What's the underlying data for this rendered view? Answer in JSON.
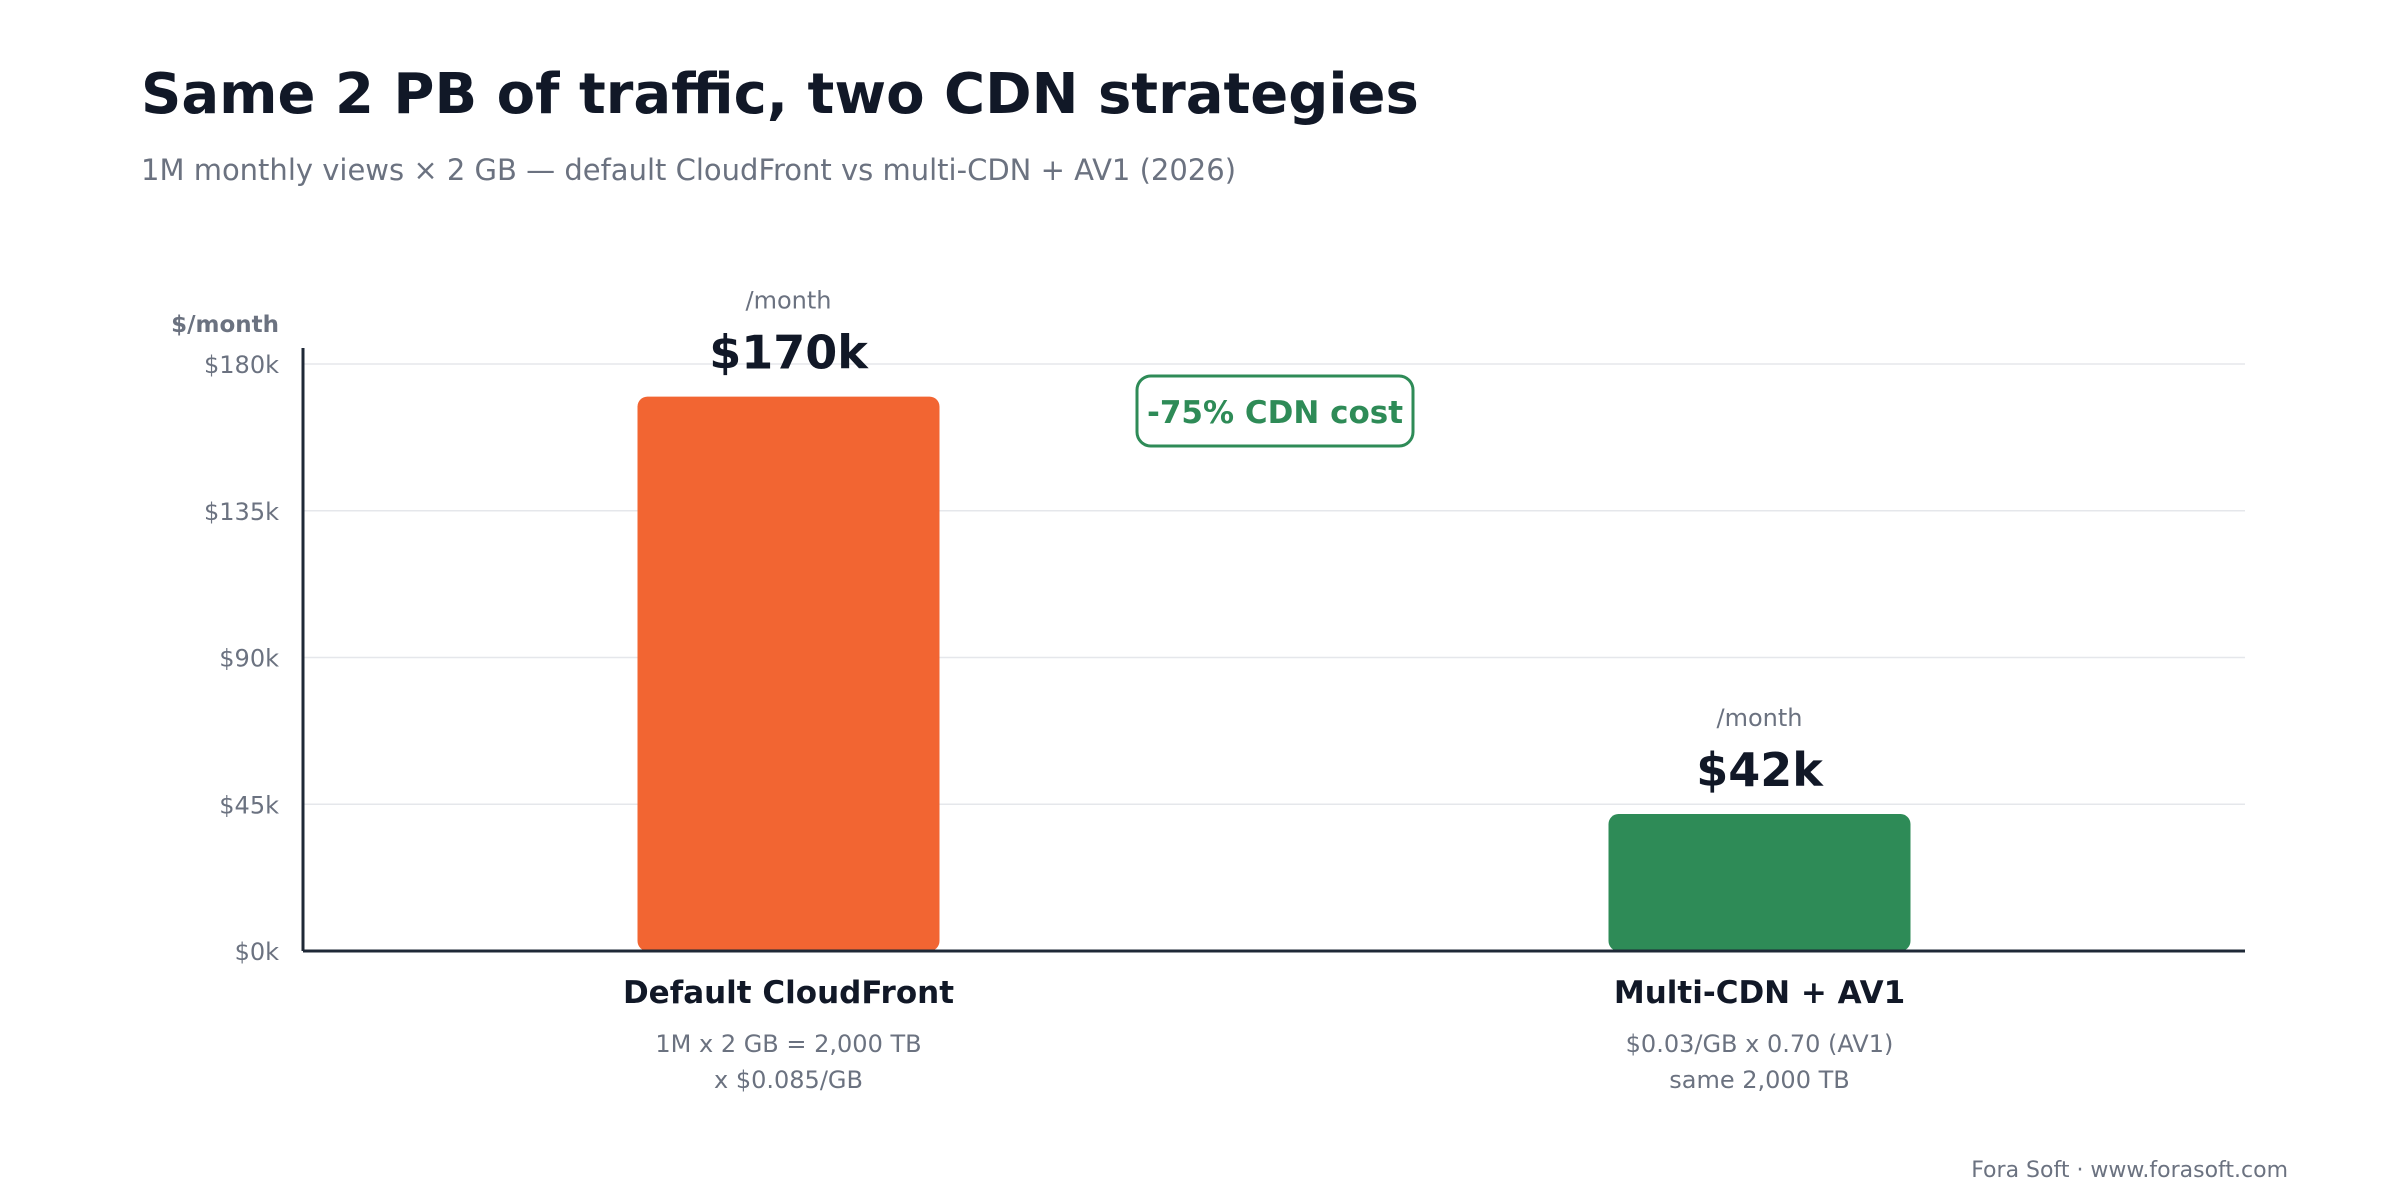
{
  "header": {
    "title": "Same 2 PB of traffic, two CDN strategies",
    "subtitle": "1M monthly views × 2 GB — default CloudFront vs multi-CDN + AV1 (2026)"
  },
  "footer": {
    "credit": "Fora Soft · www.forasoft.com"
  },
  "colors": {
    "cloudfront": "#f26532",
    "multicdn": "#2e8b57",
    "text": "#111827",
    "muted": "#6b7280",
    "grid": "#e5e7eb",
    "axis": "#1f2937"
  },
  "chart_data": {
    "type": "bar",
    "title": "Same 2 PB of traffic, two CDN strategies",
    "subtitle": "1M monthly views × 2 GB — default CloudFront vs multi-CDN + AV1 (2026)",
    "ylabel": "$/month",
    "xlabel": "",
    "ylim": [
      0,
      180000
    ],
    "y_ticks": [
      {
        "value": 0,
        "label": "$0k"
      },
      {
        "value": 45000,
        "label": "$45k"
      },
      {
        "value": 90000,
        "label": "$90k"
      },
      {
        "value": 135000,
        "label": "$135k"
      },
      {
        "value": 180000,
        "label": "$180k"
      }
    ],
    "grid": true,
    "legend": "none",
    "bars": [
      {
        "category": "Default CloudFront",
        "value": 170000,
        "value_label": "$170k",
        "unit_label": "/month",
        "color": "#f26532",
        "notes": [
          "1M x 2 GB = 2,000 TB",
          "x $0.085/GB"
        ]
      },
      {
        "category": "Multi-CDN + AV1",
        "value": 42000,
        "value_label": "$42k",
        "unit_label": "/month",
        "color": "#2e8b57",
        "notes": [
          "$0.03/GB x 0.70 (AV1)",
          "same 2,000 TB"
        ]
      }
    ],
    "annotations": [
      {
        "text": "-75% CDN cost",
        "color": "#2e8b57"
      }
    ]
  }
}
